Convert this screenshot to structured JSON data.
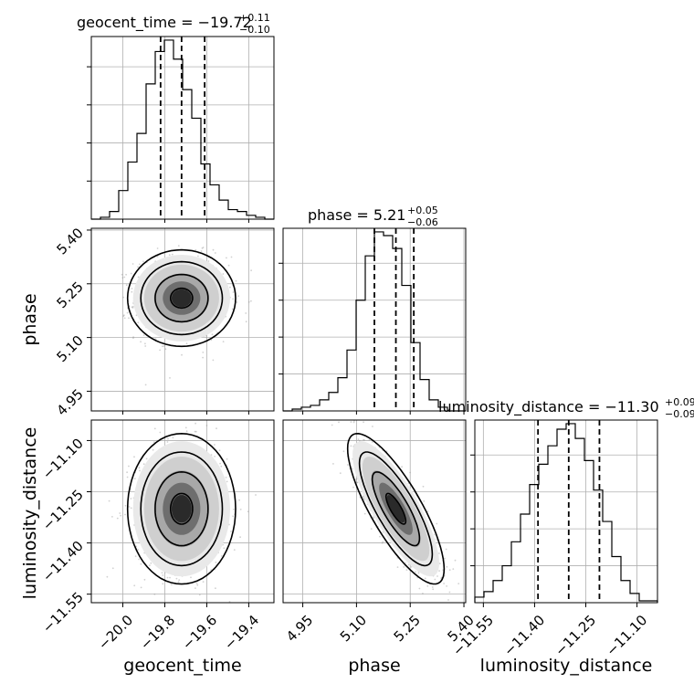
{
  "chart_data": {
    "type": "corner",
    "parameters": [
      "geocent_time",
      "phase",
      "luminosity_distance"
    ],
    "axes": {
      "geocent_time": {
        "range": [
          -20.15,
          -19.28
        ],
        "ticks": [
          -20.0,
          -19.8,
          -19.6,
          -19.4
        ],
        "tick_labels": [
          "−20.0",
          "−19.8",
          "−19.6",
          "−19.4"
        ]
      },
      "phase": {
        "range": [
          4.895,
          5.405
        ],
        "ticks": [
          4.95,
          5.1,
          5.25,
          5.4
        ],
        "tick_labels": [
          "4.95",
          "5.10",
          "5.25",
          "5.40"
        ]
      },
      "luminosity_distance": {
        "range": [
          -11.575,
          -11.04
        ],
        "ticks": [
          -11.55,
          -11.4,
          -11.25,
          -11.1
        ],
        "tick_labels": [
          "−11.55",
          "−11.40",
          "−11.25",
          "−11.10"
        ]
      }
    },
    "titles": [
      {
        "param": "geocent_time",
        "text": "geocent_time = −19.72",
        "plus": "+0.11",
        "minus": "−0.10"
      },
      {
        "param": "phase",
        "text": "phase = 5.21",
        "plus": "+0.05",
        "minus": "−0.06"
      },
      {
        "param": "luminosity_distance",
        "text": "luminosity_distance = −11.30",
        "plus": "+0.09",
        "minus": "−0.09"
      }
    ],
    "quantiles": {
      "geocent_time": [
        -19.82,
        -19.72,
        -19.61
      ],
      "phase": [
        5.15,
        5.21,
        5.26
      ],
      "luminosity_distance": [
        -11.39,
        -11.3,
        -11.21
      ]
    },
    "histograms": {
      "geocent_time": {
        "edges": [
          -20.15,
          -20.1065,
          -20.063,
          -20.0195,
          -19.976,
          -19.9325,
          -19.889,
          -19.8455,
          -19.802,
          -19.7585,
          -19.715,
          -19.6715,
          -19.628,
          -19.5845,
          -19.541,
          -19.4975,
          -19.454,
          -19.4105,
          -19.367,
          -19.3235,
          -19.28
        ],
        "counts": [
          0,
          1,
          4,
          15,
          30,
          45,
          71,
          88,
          94,
          84,
          68,
          53,
          29,
          18,
          10,
          5,
          4,
          2,
          1,
          0
        ]
      },
      "phase": {
        "edges": [
          4.895,
          4.9205,
          4.946,
          4.9715,
          4.997,
          5.0225,
          5.048,
          5.0735,
          5.099,
          5.1245,
          5.15,
          5.1755,
          5.201,
          5.2265,
          5.252,
          5.2775,
          5.303,
          5.3285,
          5.354,
          5.3795,
          5.405
        ],
        "counts": [
          0,
          1,
          2,
          3,
          6,
          10,
          18,
          33,
          60,
          84,
          97,
          95,
          88,
          68,
          37,
          17,
          6,
          2,
          0,
          0
        ]
      },
      "luminosity_distance": {
        "edges": [
          -11.575,
          -11.54825,
          -11.5215,
          -11.49475,
          -11.468,
          -11.44125,
          -11.4145,
          -11.38775,
          -11.361,
          -11.33425,
          -11.3075,
          -11.28075,
          -11.254,
          -11.22725,
          -11.2005,
          -11.17375,
          -11.147,
          -11.12025,
          -11.0935,
          -11.06675,
          -11.04
        ],
        "counts": [
          3,
          6,
          12,
          20,
          33,
          48,
          64,
          75,
          85,
          94,
          97,
          89,
          77,
          61,
          44,
          25,
          12,
          5,
          1,
          1
        ]
      }
    },
    "pairs": [
      {
        "x": "geocent_time",
        "y": "phase",
        "mean": [
          -19.72,
          5.21
        ],
        "sd": [
          0.105,
          0.055
        ],
        "rho": 0.0
      },
      {
        "x": "geocent_time",
        "y": "luminosity_distance",
        "mean": [
          -19.72,
          -11.3
        ],
        "sd": [
          0.105,
          0.09
        ],
        "rho": 0.0
      },
      {
        "x": "phase",
        "y": "luminosity_distance",
        "mean": [
          5.21,
          -11.3
        ],
        "sd": [
          0.055,
          0.09
        ],
        "rho": -0.8
      }
    ],
    "grid": true,
    "legend": "none"
  }
}
